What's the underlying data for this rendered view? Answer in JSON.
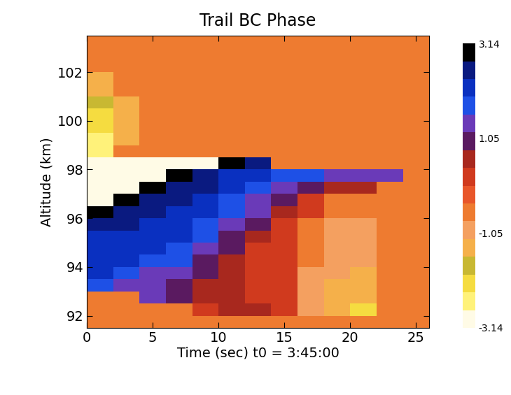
{
  "chart_data": {
    "type": "heatmap",
    "title": "Trail BC Phase",
    "x_label": "Time (sec) t0 = 3:45:00",
    "y_label": "Altitude (km)",
    "xlim": [
      0,
      26
    ],
    "xticks": [
      0,
      5,
      10,
      15,
      20,
      25
    ],
    "ylim": [
      91.5,
      103.5
    ],
    "yticks": [
      92,
      94,
      96,
      98,
      100,
      102
    ],
    "x_edges": [
      0,
      2,
      4,
      6,
      8,
      10,
      12,
      14,
      16,
      18,
      20,
      22,
      24,
      26
    ],
    "y_edges": [
      91.5,
      92,
      92.5,
      93,
      93.5,
      94,
      94.5,
      95,
      95.5,
      96,
      96.5,
      97,
      97.5,
      98,
      98.5,
      99,
      99.5,
      100,
      100.5,
      101,
      101.5,
      102,
      102.5,
      103,
      103.5
    ],
    "cells": [
      [
        -0.5,
        -0.5,
        -0.5,
        -0.5,
        -0.5,
        -0.5,
        -0.5,
        -0.5,
        -0.5,
        -0.5,
        -0.5,
        -0.5,
        -0.5
      ],
      [
        -0.5,
        -0.5,
        -0.5,
        -0.5,
        0.3,
        0.4,
        0.4,
        0.2,
        -0.9,
        -1.5,
        -2.0,
        -0.5,
        -0.5
      ],
      [
        -0.5,
        -0.5,
        1.2,
        0.8,
        0.5,
        0.4,
        0.3,
        0.1,
        -0.8,
        -1.2,
        -1.5,
        -0.5,
        -0.5
      ],
      [
        1.6,
        1.5,
        1.2,
        1.0,
        0.6,
        0.4,
        0.2,
        0.0,
        -0.9,
        -1.2,
        -1.3,
        -0.5,
        -0.5
      ],
      [
        2.0,
        1.8,
        1.5,
        1.2,
        0.9,
        0.5,
        0.2,
        0.0,
        -0.8,
        -1.1,
        -1.2,
        -0.5,
        -0.5
      ],
      [
        2.1,
        2.0,
        1.9,
        1.6,
        1.1,
        0.6,
        0.2,
        0.0,
        -0.7,
        -1.0,
        -1.1,
        -0.5,
        -0.5
      ],
      [
        2.1,
        2.1,
        2.0,
        1.9,
        1.4,
        0.8,
        0.3,
        0.0,
        -0.6,
        -0.9,
        -1.0,
        -0.5,
        -0.5
      ],
      [
        2.3,
        2.1,
        2.1,
        2.0,
        1.7,
        1.1,
        0.5,
        0.1,
        -0.5,
        -0.8,
        -0.9,
        -0.5,
        -0.5
      ],
      [
        2.7,
        2.4,
        2.2,
        2.1,
        1.9,
        1.4,
        0.8,
        0.2,
        -0.4,
        -0.8,
        -0.9,
        -0.5,
        -0.5
      ],
      [
        3.0,
        2.7,
        2.4,
        2.2,
        2.0,
        1.7,
        1.2,
        0.4,
        0.0,
        -0.7,
        -0.5,
        -0.5,
        -0.5
      ],
      [
        -2.9,
        3.0,
        2.7,
        2.5,
        2.2,
        1.9,
        1.5,
        0.8,
        0.2,
        -0.5,
        -0.5,
        -0.5,
        -0.5
      ],
      [
        -3.0,
        -3.0,
        3.1,
        2.7,
        2.4,
        2.1,
        1.8,
        1.2,
        0.8,
        0.6,
        0.4,
        -0.5,
        -0.5
      ],
      [
        -3.0,
        -3.0,
        -2.9,
        3.0,
        2.6,
        2.2,
        2.0,
        1.8,
        1.6,
        1.4,
        1.4,
        1.2,
        -0.5
      ],
      [
        -2.9,
        -2.8,
        -2.8,
        -3.0,
        -2.9,
        2.9,
        2.6,
        -0.5,
        -0.5,
        -0.5,
        -0.5,
        -0.5,
        -0.5
      ],
      [
        -2.6,
        -0.5,
        -0.5,
        -0.5,
        -0.5,
        -0.5,
        -0.5,
        -0.5,
        -0.5,
        -0.5,
        -0.5,
        -0.5,
        -0.5
      ],
      [
        -2.4,
        -1.5,
        -0.5,
        -0.5,
        -0.5,
        -0.5,
        -0.5,
        -0.5,
        -0.5,
        -0.5,
        -0.5,
        -0.5,
        -0.5
      ],
      [
        -2.2,
        -1.5,
        -0.5,
        -0.5,
        -0.5,
        -0.5,
        -0.5,
        -0.5,
        -0.5,
        -0.5,
        -0.5,
        -0.5,
        -0.5
      ],
      [
        -2.2,
        -1.5,
        -0.5,
        -0.5,
        -0.5,
        -0.5,
        -0.5,
        -0.5,
        -0.5,
        -0.5,
        -0.5,
        -0.5,
        -0.5
      ],
      [
        -1.8,
        -1.2,
        -0.5,
        -0.5,
        -0.5,
        -0.5,
        -0.5,
        -0.5,
        -0.5,
        -0.5,
        -0.5,
        -0.5,
        -0.5
      ],
      [
        -1.5,
        -0.5,
        -0.5,
        -0.5,
        -0.5,
        -0.5,
        -0.5,
        -0.5,
        -0.5,
        -0.5,
        -0.5,
        -0.5,
        -0.5
      ],
      [
        -1.2,
        -0.5,
        -0.5,
        -0.5,
        -0.5,
        -0.5,
        -0.5,
        -0.5,
        -0.5,
        -0.5,
        -0.5,
        -0.5,
        -0.5
      ],
      [
        -0.5,
        -0.5,
        -0.5,
        -0.5,
        -0.5,
        -0.5,
        -0.5,
        -0.5,
        -0.5,
        -0.5,
        -0.5,
        -0.5,
        -0.5
      ],
      [
        -0.5,
        -0.5,
        -0.5,
        -0.5,
        -0.5,
        -0.5,
        -0.5,
        -0.5,
        -0.5,
        -0.5,
        -0.5,
        -0.5,
        -0.5
      ],
      [
        -0.5,
        -0.5,
        -0.5,
        -0.5,
        -0.5,
        -0.5,
        -0.5,
        -0.5,
        -0.5,
        -0.5,
        -0.5,
        -0.5,
        -0.5
      ]
    ],
    "colorbar_range": [
      -3.14,
      3.14
    ],
    "colorbar_ticks": [
      -3.14,
      -1.05,
      1.05,
      3.14
    ]
  }
}
